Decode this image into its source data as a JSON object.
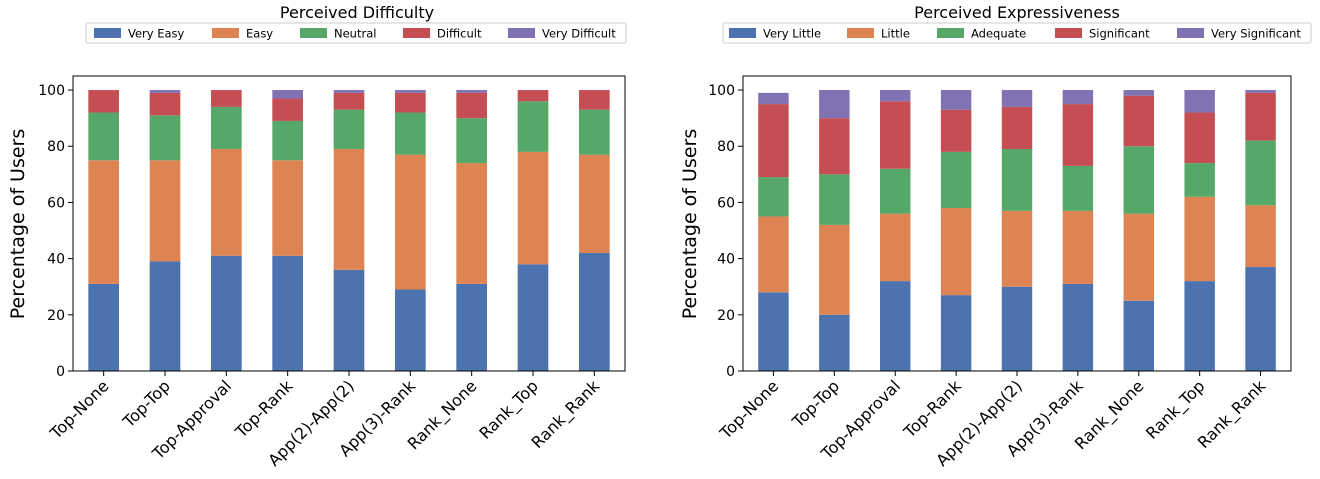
{
  "chart_data": [
    {
      "type": "bar",
      "stacked": true,
      "title": "Perceived Difficulty",
      "ylabel": "Percentage of Users",
      "xlabel": "",
      "ylim": [
        0,
        105
      ],
      "yticks": [
        "0",
        "20",
        "40",
        "60",
        "80",
        "100"
      ],
      "legend_position": "top",
      "categories": [
        "Top-None",
        "Top-Top",
        "Top-Approval",
        "Top-Rank",
        "App(2)-App(2)",
        "App(3)-Rank",
        "Rank_None",
        "Rank_Top",
        "Rank_Rank"
      ],
      "series": [
        {
          "name": "Very Easy",
          "color": "#4c72b0",
          "values": [
            31,
            39,
            41,
            41,
            36,
            29,
            31,
            38,
            42
          ]
        },
        {
          "name": "Easy",
          "color": "#dd8452",
          "values": [
            44,
            36,
            38,
            34,
            43,
            48,
            43,
            40,
            35
          ]
        },
        {
          "name": "Neutral",
          "color": "#55a868",
          "values": [
            17,
            16,
            15,
            14,
            14,
            15,
            16,
            18,
            16
          ]
        },
        {
          "name": "Difficult",
          "color": "#c44e52",
          "values": [
            8,
            8,
            6,
            8,
            6,
            7,
            9,
            4,
            7
          ]
        },
        {
          "name": "Very Difficult",
          "color": "#8172b3",
          "values": [
            0,
            1,
            0,
            3,
            1,
            1,
            1,
            0,
            0
          ]
        }
      ]
    },
    {
      "type": "bar",
      "stacked": true,
      "title": "Perceived Expressiveness",
      "ylabel": "Percentage of Users",
      "xlabel": "",
      "ylim": [
        0,
        105
      ],
      "yticks": [
        "0",
        "20",
        "40",
        "60",
        "80",
        "100"
      ],
      "legend_position": "top",
      "categories": [
        "Top-None",
        "Top-Top",
        "Top-Approval",
        "Top-Rank",
        "App(2)-App(2)",
        "App(3)-Rank",
        "Rank_None",
        "Rank_Top",
        "Rank_Rank"
      ],
      "series": [
        {
          "name": "Very Little",
          "color": "#4c72b0",
          "values": [
            28,
            20,
            32,
            27,
            30,
            31,
            25,
            32,
            37
          ]
        },
        {
          "name": "Little",
          "color": "#dd8452",
          "values": [
            27,
            32,
            24,
            31,
            27,
            26,
            31,
            30,
            22
          ]
        },
        {
          "name": "Adequate",
          "color": "#55a868",
          "values": [
            14,
            18,
            16,
            20,
            22,
            16,
            24,
            12,
            23
          ]
        },
        {
          "name": "Significant",
          "color": "#c44e52",
          "values": [
            26,
            20,
            24,
            15,
            15,
            22,
            18,
            18,
            17
          ]
        },
        {
          "name": "Very Significant",
          "color": "#8172b3",
          "values": [
            4,
            10,
            4,
            7,
            6,
            5,
            2,
            8,
            1
          ]
        }
      ]
    }
  ]
}
